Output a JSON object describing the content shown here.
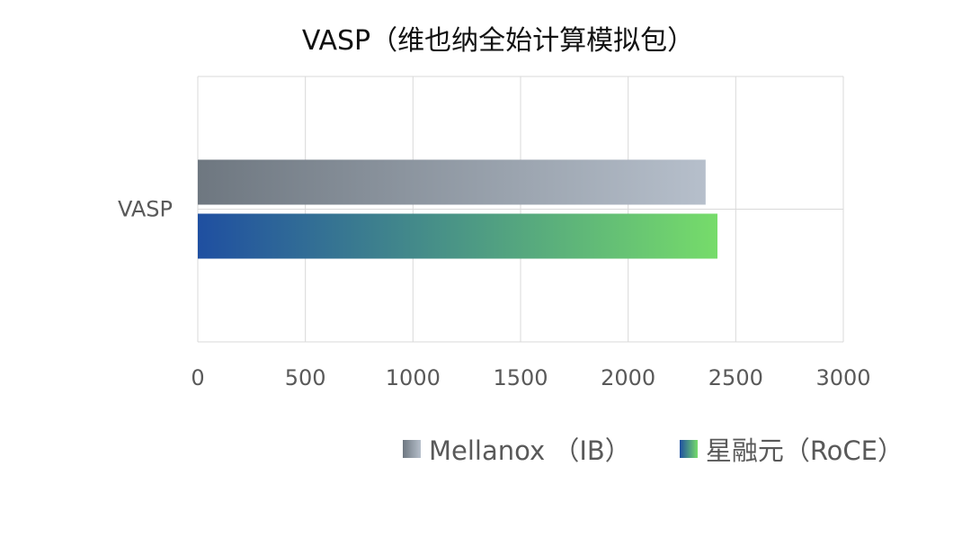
{
  "chart_data": {
    "type": "bar",
    "orientation": "horizontal",
    "title": "VASP（维也纳全始计算模拟包）",
    "categories": [
      "VASP"
    ],
    "series": [
      {
        "name": "Mellanox （IB）",
        "values": [
          2360
        ],
        "gradient": [
          "#6e7780",
          "#b6bfcb"
        ]
      },
      {
        "name": "星融元（RoCE）",
        "values": [
          2415
        ],
        "gradient": [
          "#1f4fa1",
          "#76dc6a"
        ]
      }
    ],
    "xlim": [
      0,
      3000
    ],
    "xticks": [
      "0",
      "500",
      "1000",
      "1500",
      "2000",
      "2500",
      "3000"
    ],
    "grid": true,
    "legend_position": "bottom"
  },
  "colors": {
    "grid": "#d9d9d9",
    "tick_label": "#595959",
    "title": "#111111"
  }
}
